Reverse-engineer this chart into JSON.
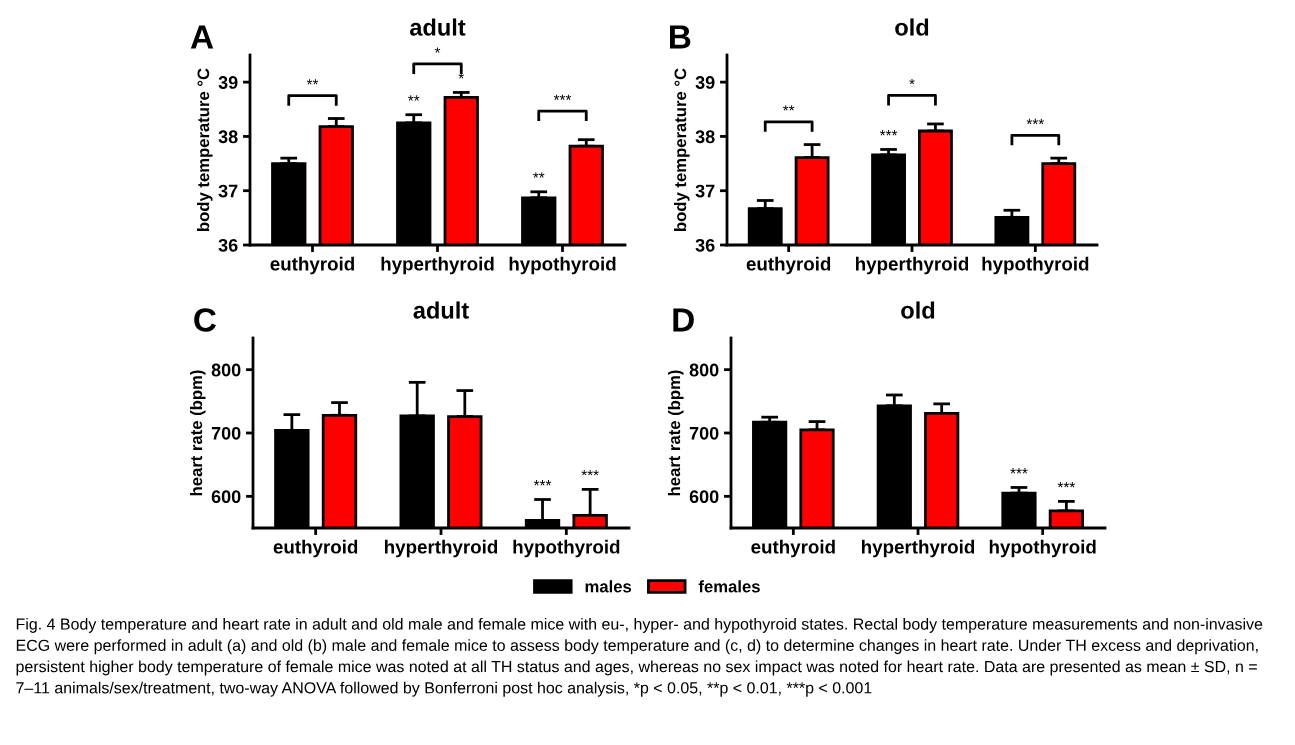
{
  "chart_data": [
    {
      "type": "bar",
      "title": "adult",
      "ylabel": "body temperature °C",
      "categories": [
        "euthyroid",
        "hyperthyroid",
        "hypothyroid"
      ],
      "ylim": [
        36,
        39.5
      ],
      "yticks": [
        36,
        37,
        38,
        39
      ],
      "grid": false,
      "legend": "bottom",
      "series": [
        {
          "name": "males",
          "color": "#000000",
          "values": [
            37.5,
            38.25,
            36.87
          ],
          "errors": [
            [
              37.5,
              37.6
            ],
            [
              38.25,
              38.4
            ],
            [
              36.87,
              36.98
            ]
          ],
          "value_labels": [
            null,
            "**",
            "**"
          ]
        },
        {
          "name": "females",
          "color": "#ff0000",
          "values": [
            38.18,
            38.72,
            37.82
          ],
          "errors": [
            [
              38.18,
              38.33
            ],
            [
              38.72,
              38.81
            ],
            [
              37.82,
              37.94
            ]
          ],
          "value_labels": [
            null,
            "*",
            null
          ]
        }
      ],
      "annotations": [
        "A",
        "**",
        "*",
        "***"
      ]
    },
    {
      "type": "bar",
      "title": "old",
      "ylabel": "body temperature °C",
      "categories": [
        "euthyroid",
        "hyperthyroid",
        "hypothyroid"
      ],
      "ylim": [
        36,
        39.5
      ],
      "yticks": [
        36,
        37,
        38,
        39
      ],
      "grid": false,
      "legend": false,
      "series": [
        {
          "color": "#000000",
          "values": [
            36.67,
            37.66,
            36.51
          ],
          "errors": [
            [
              36.67,
              36.82
            ],
            [
              37.66,
              37.76
            ],
            [
              36.51,
              36.64
            ]
          ],
          "value_labels": [
            null,
            "***",
            null
          ]
        },
        {
          "color": "#ff0000",
          "values": [
            37.61,
            38.1,
            37.5
          ],
          "errors": [
            [
              37.61,
              37.85
            ],
            [
              38.1,
              38.23
            ],
            [
              37.5,
              37.6
            ]
          ],
          "value_labels": [
            null,
            null,
            null
          ]
        }
      ],
      "annotations": [
        "B",
        "**",
        "*",
        "***"
      ]
    },
    {
      "type": "bar",
      "title": "adult",
      "ylabel": "heart rate (bpm)",
      "categories": [
        "euthyroid",
        "hyperthyroid",
        "hypothyroid"
      ],
      "ylim": [
        550,
        850
      ],
      "yticks": [
        600,
        700,
        800
      ],
      "grid": false,
      "legend": false,
      "series": [
        {
          "color": "#000000",
          "values": [
            704,
            727,
            562
          ],
          "errors": [
            [
              704,
              729
            ],
            [
              727,
              780
            ],
            [
              562,
              595
            ]
          ],
          "value_labels": [
            null,
            null,
            "***"
          ]
        },
        {
          "color": "#ff0000",
          "values": [
            728,
            726,
            570
          ],
          "errors": [
            [
              728,
              748
            ],
            [
              726,
              767
            ],
            [
              570,
              611
            ]
          ],
          "value_labels": [
            null,
            null,
            "***"
          ]
        }
      ],
      "annotations": [
        "C"
      ]
    },
    {
      "type": "bar",
      "title": "old",
      "ylabel": "heart rate (bpm)",
      "categories": [
        "euthyroid",
        "hyperthyroid",
        "hypothyroid"
      ],
      "ylim": [
        550,
        850
      ],
      "yticks": [
        600,
        700,
        800
      ],
      "grid": false,
      "legend": false,
      "series": [
        {
          "color": "#000000",
          "values": [
            717,
            743,
            605
          ],
          "errors": [
            [
              717,
              725
            ],
            [
              743,
              760
            ],
            [
              605,
              614
            ]
          ],
          "value_labels": [
            null,
            null,
            "***"
          ]
        },
        {
          "color": "#ff0000",
          "values": [
            705,
            731,
            577
          ],
          "errors": [
            [
              705,
              718
            ],
            [
              731,
              746
            ],
            [
              577,
              592
            ]
          ],
          "value_labels": [
            null,
            null,
            "***"
          ]
        }
      ],
      "annotations": [
        "D",
        "Fig. 4 Body temperature and heart rate in adult and old male and female mice with eu-, hyper- and hypothyroid states. Rectal body temperature measurements and non-invasive ECG were performed in adult (a) and old (b) male and female mice to assess body temperature and (c, d) to determine changes in heart rate. Under TH excess and deprivation, persistent higher body temperature of female mice was noted at all TH status and ages, whereas no sex impact was noted for heart rate. Data are presented as mean ± SD, n = 7–11 animals/sex/treatment, two-way ANOVA followed by Bonferroni post hoc analysis, *p < 0.05, **p < 0.01, ***p < 0.001"
      ]
    }
  ]
}
